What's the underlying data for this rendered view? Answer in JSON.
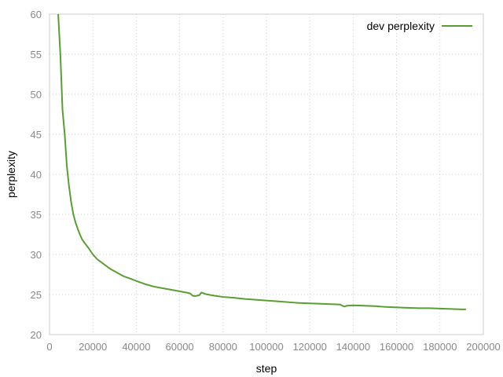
{
  "chart_data": {
    "type": "line",
    "title": "",
    "xlabel": "step",
    "ylabel": "perplexity",
    "xlim": [
      0,
      200000
    ],
    "ylim": [
      20,
      60
    ],
    "xticks": [
      0,
      20000,
      40000,
      60000,
      80000,
      100000,
      120000,
      140000,
      160000,
      180000,
      200000
    ],
    "yticks": [
      20,
      25,
      30,
      35,
      40,
      45,
      50,
      55,
      60
    ],
    "grid": true,
    "legend_position": "top-right",
    "series": [
      {
        "name": "dev perplexity",
        "color": "#5a9e32",
        "x": [
          4000,
          5000,
          6000,
          7000,
          8000,
          9000,
          10000,
          11000,
          12000,
          13000,
          14000,
          15000,
          16000,
          18000,
          20000,
          22000,
          24000,
          26000,
          28000,
          30000,
          32000,
          34000,
          36000,
          38000,
          40000,
          44000,
          48000,
          52000,
          56000,
          60000,
          64000,
          65000,
          66000,
          67000,
          68000,
          69000,
          70000,
          71000,
          72000,
          74000,
          76000,
          80000,
          85000,
          90000,
          95000,
          100000,
          105000,
          110000,
          115000,
          120000,
          125000,
          130000,
          134000,
          135000,
          136000,
          137000,
          140000,
          145000,
          150000,
          155000,
          160000,
          165000,
          170000,
          175000,
          180000,
          185000,
          190000,
          192000
        ],
        "y": [
          60.0,
          55.0,
          48.0,
          45.0,
          41.0,
          38.5,
          36.5,
          35.0,
          34.0,
          33.2,
          32.5,
          31.9,
          31.5,
          30.8,
          30.0,
          29.4,
          29.0,
          28.6,
          28.2,
          27.9,
          27.6,
          27.3,
          27.1,
          26.9,
          26.7,
          26.3,
          26.0,
          25.8,
          25.6,
          25.4,
          25.2,
          25.1,
          24.85,
          24.8,
          24.85,
          24.9,
          25.25,
          25.15,
          25.05,
          24.95,
          24.85,
          24.7,
          24.6,
          24.45,
          24.35,
          24.25,
          24.15,
          24.05,
          23.95,
          23.9,
          23.85,
          23.8,
          23.75,
          23.6,
          23.5,
          23.6,
          23.65,
          23.6,
          23.55,
          23.45,
          23.4,
          23.35,
          23.3,
          23.3,
          23.25,
          23.2,
          23.15,
          23.15
        ]
      }
    ]
  }
}
